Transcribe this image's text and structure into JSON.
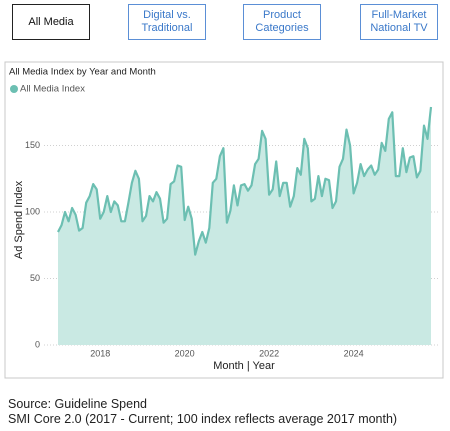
{
  "tabs": [
    {
      "lines": [
        "All Media"
      ],
      "active": true
    },
    {
      "lines": [
        "Digital vs.",
        "Traditional"
      ],
      "active": false
    },
    {
      "lines": [
        "Product",
        "Categories"
      ],
      "active": false
    },
    {
      "lines": [
        "Full-Market",
        "National TV"
      ],
      "active": false
    }
  ],
  "chart_data": {
    "type": "area",
    "title": "All Media Index by Year and Month",
    "x_label": "Month | Year",
    "y_label": "Ad Spend Index",
    "categories": [
      null,
      null,
      null,
      null,
      null,
      null,
      null,
      null,
      null,
      null,
      null,
      null,
      "2018",
      null,
      null,
      null,
      null,
      null,
      null,
      null,
      null,
      null,
      null,
      null,
      null,
      null,
      null,
      null,
      null,
      null,
      null,
      null,
      null,
      null,
      null,
      null,
      "2020",
      null,
      null,
      null,
      null,
      null,
      null,
      null,
      null,
      null,
      null,
      null,
      null,
      null,
      null,
      null,
      null,
      null,
      null,
      null,
      null,
      null,
      null,
      null,
      "2022",
      null,
      null,
      null,
      null,
      null,
      null,
      null,
      null,
      null,
      null,
      null,
      null,
      null,
      null,
      null,
      null,
      null,
      null,
      null,
      null,
      null,
      null,
      null,
      "2024",
      null,
      null,
      null,
      null,
      null,
      null,
      null,
      null,
      null,
      null,
      null,
      null,
      null,
      null,
      null,
      null,
      null,
      null,
      null,
      null,
      null,
      null
    ],
    "series": [
      {
        "name": "All Media Index",
        "color": "#6cbfb2",
        "fill": "#c9e9e3",
        "values": [
          85,
          90,
          100,
          93,
          103,
          98,
          86,
          88,
          107,
          112,
          121,
          117,
          95,
          100,
          112,
          100,
          108,
          105,
          93,
          93,
          107,
          122,
          131,
          125,
          93,
          97,
          112,
          108,
          115,
          110,
          92,
          95,
          121,
          123,
          135,
          134,
          94,
          104,
          95,
          68,
          78,
          85,
          77,
          88,
          122,
          125,
          142,
          148,
          92,
          101,
          120,
          105,
          120,
          121,
          116,
          120,
          136,
          140,
          161,
          155,
          113,
          117,
          138,
          112,
          122,
          122,
          104,
          112,
          133,
          128,
          155,
          148,
          108,
          110,
          127,
          112,
          125,
          124,
          103,
          108,
          134,
          140,
          162,
          150,
          114,
          122,
          136,
          127,
          132,
          135,
          128,
          132,
          152,
          146,
          170,
          175,
          127,
          127,
          148,
          130,
          141,
          142,
          126,
          131,
          165,
          155,
          179
        ]
      }
    ],
    "ylim": [
      0,
      188
    ],
    "yticks": [
      0,
      50,
      100,
      150
    ],
    "grid": true
  },
  "footer": {
    "source": "Source: Guideline Spend",
    "note": "SMI Core 2.0 (2017 - Current; 100 index reflects average 2017 month)"
  }
}
